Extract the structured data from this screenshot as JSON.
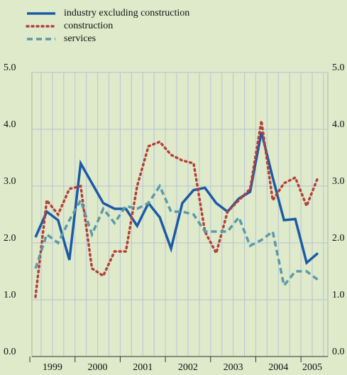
{
  "chart_data": {
    "type": "line",
    "categories": [
      null,
      "1999",
      null,
      null,
      null,
      "2000",
      null,
      null,
      null,
      "2001",
      null,
      null,
      null,
      "2002",
      null,
      null,
      null,
      "2003",
      null,
      null,
      null,
      "2004",
      null,
      null,
      "2005",
      null
    ],
    "series": [
      {
        "name": "industry excluding construction",
        "color": "#1c5aa6",
        "style": "solid",
        "values": [
          2.1,
          2.55,
          2.4,
          1.7,
          3.4,
          3.05,
          2.7,
          2.6,
          2.6,
          2.3,
          2.7,
          2.45,
          1.9,
          2.7,
          2.93,
          2.97,
          2.7,
          2.55,
          2.78,
          2.9,
          3.95,
          3.15,
          2.4,
          2.42,
          1.65,
          1.82
        ]
      },
      {
        "name": "construction",
        "color": "#b5403a",
        "style": "dotted",
        "values": [
          1.05,
          2.75,
          2.5,
          2.95,
          3.0,
          1.55,
          1.42,
          1.85,
          1.85,
          3.0,
          3.7,
          3.78,
          3.55,
          3.45,
          3.4,
          2.2,
          1.82,
          2.55,
          2.75,
          2.95,
          4.15,
          2.75,
          3.05,
          3.15,
          2.65,
          3.15
        ]
      },
      {
        "name": "services",
        "color": "#5b9aa8",
        "style": "dashed",
        "values": [
          1.55,
          2.15,
          2.0,
          2.4,
          2.75,
          2.15,
          2.6,
          2.35,
          2.65,
          2.6,
          2.7,
          3.0,
          2.55,
          2.55,
          2.5,
          2.2,
          2.2,
          2.2,
          2.45,
          1.95,
          2.05,
          2.2,
          1.25,
          1.5,
          1.5,
          1.35
        ]
      }
    ],
    "ylim": [
      0,
      5
    ],
    "yticks": [
      {
        "value": 0,
        "label": "0.0"
      },
      {
        "value": 1,
        "label": "1.0"
      },
      {
        "value": 2,
        "label": "2.0"
      },
      {
        "value": 3,
        "label": "3.0"
      },
      {
        "value": 4,
        "label": "4.0"
      },
      {
        "value": 5,
        "label": "5.0"
      }
    ],
    "y2lim": [
      0,
      5
    ],
    "y2ticks": [
      {
        "value": 0,
        "label": "0.0"
      },
      {
        "value": 1,
        "label": "1.0"
      },
      {
        "value": 2,
        "label": "2.0"
      },
      {
        "value": 3,
        "label": "3.0"
      },
      {
        "value": 4,
        "label": "4.0"
      },
      {
        "value": 5,
        "label": "5.0"
      }
    ],
    "grid": true,
    "legend": "top-left"
  }
}
